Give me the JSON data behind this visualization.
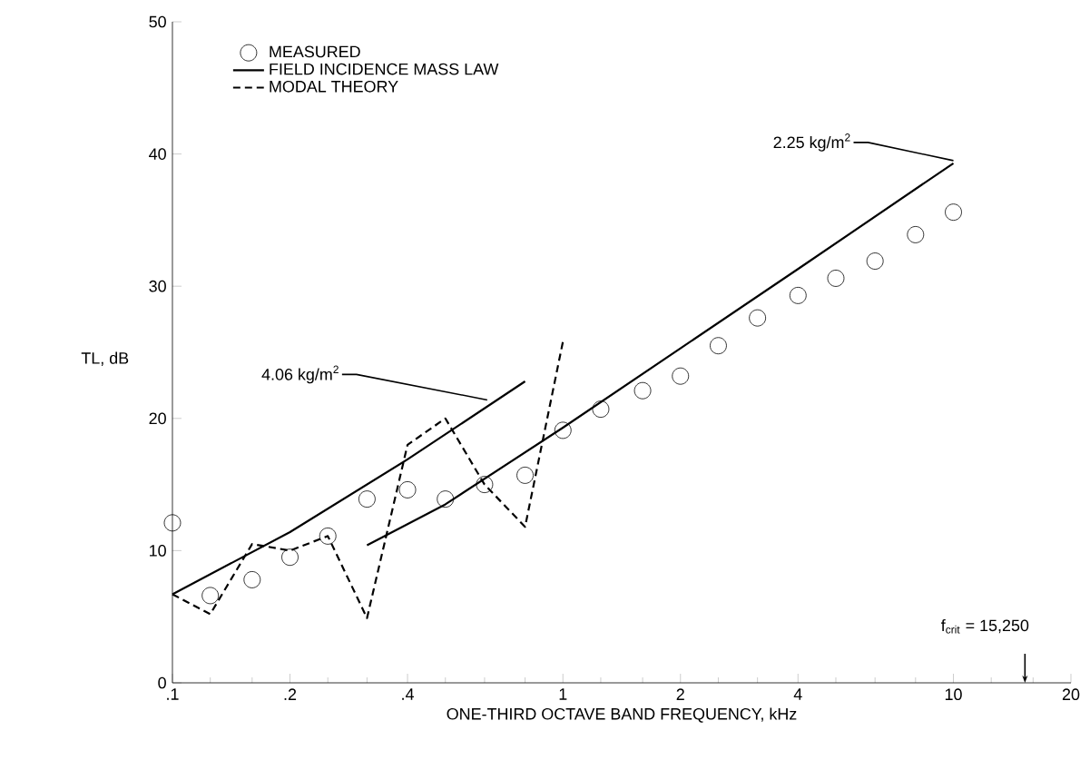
{
  "chart_data": {
    "type": "scatter",
    "xlabel": "ONE-THIRD OCTAVE BAND FREQUENCY, kHz",
    "ylabel": "TL, dB",
    "log": "x",
    "xlim": [
      0.1,
      20
    ],
    "ylim": [
      0,
      50
    ],
    "xticks": [
      {
        "value": 0.1,
        "label": ".1"
      },
      {
        "value": 0.2,
        "label": ".2"
      },
      {
        "value": 0.4,
        "label": ".4"
      },
      1,
      2,
      4,
      10,
      20
    ],
    "yticks": [
      0,
      10,
      20,
      30,
      40,
      50
    ],
    "grid": false,
    "legend": "top left",
    "series": [
      {
        "name": "MEASURED",
        "marker": "circle",
        "color": "#000000",
        "x": [
          0.1,
          0.125,
          0.16,
          0.2,
          0.25,
          0.315,
          0.4,
          0.5,
          0.63,
          0.8,
          1,
          1.25,
          1.6,
          2,
          2.5,
          3.15,
          4,
          5,
          6.3,
          8,
          10
        ],
        "values": [
          12.1,
          6.6,
          7.8,
          9.5,
          11.1,
          13.9,
          14.6,
          13.9,
          15.0,
          15.7,
          19.1,
          20.7,
          22.1,
          23.2,
          25.5,
          27.6,
          29.3,
          30.6,
          31.9,
          33.9,
          35.6
        ]
      },
      {
        "name": "FIELD INCIDENCE MASS LAW",
        "type": "line",
        "line_style": "solid",
        "marker": "none",
        "color": "#000000",
        "x": [
          0.1,
          0.2,
          0.4,
          0.8
        ],
        "values": [
          6.7,
          11.4,
          16.9,
          22.8
        ]
      },
      {
        "name": "MODAL THEORY",
        "type": "line",
        "line_style": "dashed",
        "marker": "none",
        "color": "#000000",
        "x": [
          0.1,
          0.125,
          0.16,
          0.2,
          0.25,
          0.315,
          0.4,
          0.5,
          0.63,
          0.8,
          1
        ],
        "values": [
          6.7,
          5.2,
          10.5,
          10.0,
          11.1,
          4.9,
          18.0,
          20.0,
          15.0,
          11.8,
          25.8
        ]
      },
      {
        "type": "line",
        "line_style": "solid",
        "marker": "none",
        "color": "#000000",
        "x": [
          0.315,
          0.5,
          1,
          2,
          4,
          10
        ],
        "values": [
          10.4,
          13.5,
          19.3,
          25.3,
          31.3,
          39.3
        ]
      }
    ],
    "annotations": [
      {
        "text": "4.06 kg/m$^{2}$",
        "x": 0.64,
        "y": 21.4
      },
      {
        "text": "2.25 kg/m$^{2}$",
        "x": 10,
        "y": 39.5
      },
      {
        "text": "f$_{crit}$ = 15,250",
        "x": 15.25,
        "y": 0
      }
    ]
  }
}
